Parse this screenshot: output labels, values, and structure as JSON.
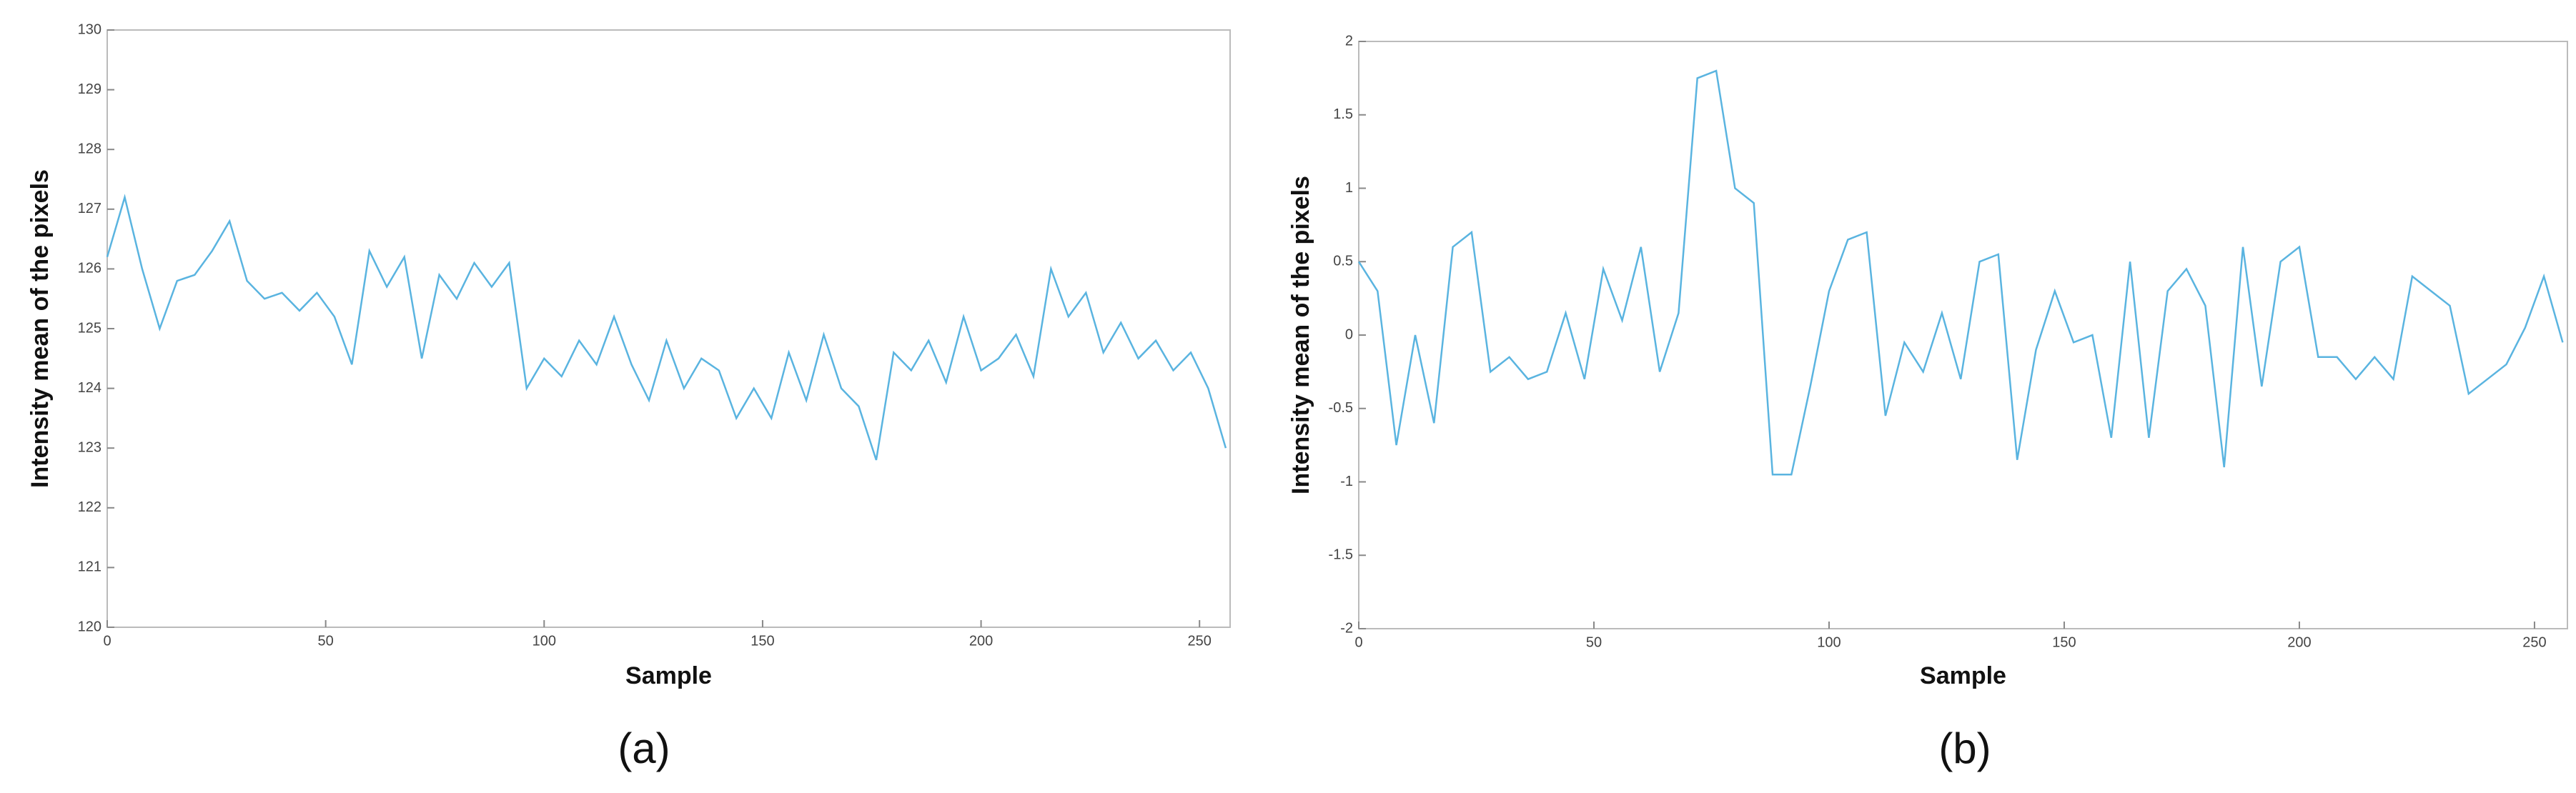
{
  "chart_data": [
    {
      "type": "line",
      "caption": "(a)",
      "xlabel": "Sample",
      "ylabel": "Intensity mean of the pixels",
      "xlim": [
        0,
        257
      ],
      "ylim": [
        120,
        130
      ],
      "xticks": [
        0,
        50,
        100,
        150,
        200,
        250
      ],
      "yticks": [
        120,
        121,
        122,
        123,
        124,
        125,
        126,
        127,
        128,
        129,
        130
      ],
      "color": "#5ab4e0",
      "x": [
        0,
        4,
        8,
        12,
        16,
        20,
        24,
        28,
        32,
        36,
        40,
        44,
        48,
        52,
        56,
        60,
        64,
        68,
        72,
        76,
        80,
        84,
        88,
        92,
        96,
        100,
        104,
        108,
        112,
        116,
        120,
        124,
        128,
        132,
        136,
        140,
        144,
        148,
        152,
        156,
        160,
        164,
        168,
        172,
        176,
        180,
        184,
        188,
        192,
        196,
        200,
        204,
        208,
        212,
        216,
        220,
        224,
        228,
        232,
        236,
        240,
        244,
        248,
        252,
        256
      ],
      "values": [
        126.2,
        127.2,
        126.0,
        125.0,
        125.8,
        125.9,
        126.3,
        126.8,
        125.8,
        125.5,
        125.6,
        125.3,
        125.6,
        125.2,
        124.4,
        126.3,
        125.7,
        126.2,
        124.5,
        125.9,
        125.5,
        126.1,
        125.7,
        126.1,
        124.0,
        124.5,
        124.2,
        124.8,
        124.4,
        125.2,
        124.4,
        123.8,
        124.8,
        124.0,
        124.5,
        124.3,
        123.5,
        124.0,
        123.5,
        124.6,
        123.8,
        124.9,
        124.0,
        123.7,
        122.8,
        124.6,
        124.3,
        124.8,
        124.1,
        125.2,
        124.3,
        124.5,
        124.9,
        124.2,
        126.0,
        125.2,
        125.6,
        124.6,
        125.1,
        124.5,
        124.8,
        124.3,
        124.6,
        124.0,
        123.0
      ]
    },
    {
      "type": "line",
      "caption": "(b)",
      "xlabel": "Sample",
      "ylabel": "Intensity mean of the pixels",
      "xlim": [
        0,
        257
      ],
      "ylim": [
        -2,
        2
      ],
      "xticks": [
        0,
        50,
        100,
        150,
        200,
        250
      ],
      "yticks": [
        -2,
        -1.5,
        -1,
        -0.5,
        0,
        0.5,
        1,
        1.5,
        2
      ],
      "color": "#5ab4e0",
      "x": [
        0,
        4,
        8,
        12,
        16,
        20,
        24,
        28,
        32,
        36,
        40,
        44,
        48,
        52,
        56,
        60,
        64,
        68,
        72,
        76,
        80,
        84,
        88,
        92,
        96,
        100,
        104,
        108,
        112,
        116,
        120,
        124,
        128,
        132,
        136,
        140,
        144,
        148,
        152,
        156,
        160,
        164,
        168,
        172,
        176,
        180,
        184,
        188,
        192,
        196,
        200,
        204,
        208,
        212,
        216,
        220,
        224,
        228,
        232,
        236,
        240,
        244,
        248,
        252,
        256
      ],
      "values": [
        0.5,
        0.3,
        -0.75,
        0.0,
        -0.6,
        0.6,
        0.7,
        -0.25,
        -0.15,
        -0.3,
        -0.25,
        0.15,
        -0.3,
        0.45,
        0.1,
        0.6,
        -0.25,
        0.15,
        1.75,
        1.8,
        1.0,
        0.9,
        -0.95,
        -0.95,
        -0.35,
        0.3,
        0.65,
        0.7,
        -0.55,
        -0.05,
        -0.25,
        0.15,
        -0.3,
        0.5,
        0.55,
        -0.85,
        -0.1,
        0.3,
        -0.05,
        0.0,
        -0.7,
        0.5,
        -0.7,
        0.3,
        0.45,
        0.2,
        -0.9,
        0.6,
        -0.35,
        0.5,
        0.6,
        -0.15,
        -0.15,
        -0.3,
        -0.15,
        -0.3,
        0.4,
        0.3,
        0.2,
        -0.4,
        -0.3,
        -0.2,
        0.05,
        0.4,
        -0.05
      ]
    }
  ]
}
